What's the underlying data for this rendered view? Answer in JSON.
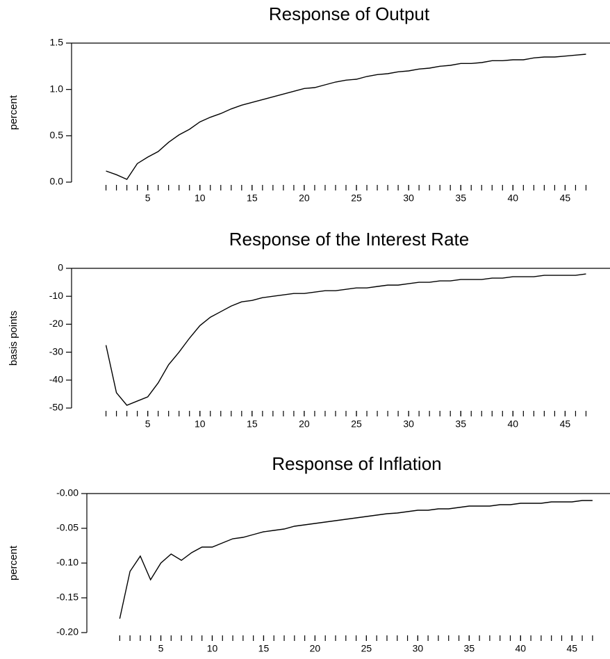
{
  "chart_data": [
    {
      "type": "line",
      "title": "Response of Output",
      "y_label": "percent",
      "x": [
        1,
        2,
        3,
        4,
        5,
        6,
        7,
        8,
        9,
        10,
        11,
        12,
        13,
        14,
        15,
        16,
        17,
        18,
        19,
        20,
        21,
        22,
        23,
        24,
        25,
        26,
        27,
        28,
        29,
        30,
        31,
        32,
        33,
        34,
        35,
        36,
        37,
        38,
        39,
        40,
        41,
        42,
        43,
        44,
        45,
        46,
        47
      ],
      "values": [
        0.12,
        0.08,
        0.03,
        0.2,
        0.27,
        0.33,
        0.43,
        0.51,
        0.57,
        0.65,
        0.7,
        0.74,
        0.79,
        0.83,
        0.86,
        0.89,
        0.92,
        0.95,
        0.98,
        1.01,
        1.02,
        1.05,
        1.08,
        1.1,
        1.11,
        1.14,
        1.16,
        1.17,
        1.19,
        1.2,
        1.22,
        1.23,
        1.25,
        1.26,
        1.28,
        1.28,
        1.29,
        1.31,
        1.31,
        1.32,
        1.32,
        1.34,
        1.35,
        1.35,
        1.36,
        1.37,
        1.38
      ],
      "color": "#000000",
      "xlim": [
        -2.3,
        49.3
      ],
      "xticks": [
        5,
        10,
        15,
        20,
        25,
        30,
        35,
        40,
        45
      ],
      "ylim": [
        0,
        1.5
      ],
      "yticks": [
        {
          "value": 0,
          "label": "0.0"
        },
        0.5,
        {
          "value": 1,
          "label": "1.0"
        },
        1.5
      ]
    },
    {
      "type": "line",
      "title": "Response of the Interest Rate",
      "y_label": "basis points",
      "x": [
        1,
        2,
        3,
        4,
        5,
        6,
        7,
        8,
        9,
        10,
        11,
        12,
        13,
        14,
        15,
        16,
        17,
        18,
        19,
        20,
        21,
        22,
        23,
        24,
        25,
        26,
        27,
        28,
        29,
        30,
        31,
        32,
        33,
        34,
        35,
        36,
        37,
        38,
        39,
        40,
        41,
        42,
        43,
        44,
        45,
        46,
        47
      ],
      "values": [
        -27.5,
        -44.5,
        -49,
        -47.5,
        -46,
        -41,
        -34.5,
        -30,
        -25,
        -20.5,
        -17.5,
        -15.5,
        -13.5,
        -12,
        -11.5,
        -10.5,
        -10,
        -9.5,
        -9,
        -9,
        -8.5,
        -8,
        -8,
        -7.5,
        -7,
        -7,
        -6.5,
        -6,
        -6,
        -5.5,
        -5,
        -5,
        -4.5,
        -4.5,
        -4,
        -4,
        -4,
        -3.5,
        -3.5,
        -3,
        -3,
        -3,
        -2.5,
        -2.5,
        -2.5,
        -2.5,
        -2
      ],
      "color": "#000000",
      "xlim": [
        -2.3,
        49.3
      ],
      "xticks": [
        5,
        10,
        15,
        20,
        25,
        30,
        35,
        40,
        45
      ],
      "ylim": [
        -50,
        0
      ],
      "yticks": [
        -50,
        -40,
        -30,
        -20,
        -10,
        0
      ]
    },
    {
      "type": "line",
      "title": "Response of Inflation",
      "y_label": "percent",
      "x": [
        1,
        2,
        3,
        4,
        5,
        6,
        7,
        8,
        9,
        10,
        11,
        12,
        13,
        14,
        15,
        16,
        17,
        18,
        19,
        20,
        21,
        22,
        23,
        24,
        25,
        26,
        27,
        28,
        29,
        30,
        31,
        32,
        33,
        34,
        35,
        36,
        37,
        38,
        39,
        40,
        41,
        42,
        43,
        44,
        45,
        46,
        47
      ],
      "values": [
        -0.18,
        -0.112,
        -0.09,
        -0.124,
        -0.1,
        -0.087,
        -0.096,
        -0.085,
        -0.077,
        -0.077,
        -0.071,
        -0.065,
        -0.063,
        -0.059,
        -0.055,
        -0.053,
        -0.051,
        -0.047,
        -0.045,
        -0.043,
        -0.041,
        -0.039,
        -0.037,
        -0.035,
        -0.033,
        -0.031,
        -0.029,
        -0.028,
        -0.026,
        -0.024,
        -0.024,
        -0.022,
        -0.022,
        -0.02,
        -0.018,
        -0.018,
        -0.018,
        -0.016,
        -0.016,
        -0.014,
        -0.014,
        -0.014,
        -0.012,
        -0.012,
        -0.012,
        -0.01,
        -0.01
      ],
      "color": "#000000",
      "xlim": [
        -2.2,
        48.7
      ],
      "xticks": [
        5,
        10,
        15,
        20,
        25,
        30,
        35,
        40,
        45
      ],
      "ylim": [
        -0.2,
        0
      ],
      "yticks": [
        {
          "value": -0.2,
          "label": "-0.20"
        },
        -0.15,
        {
          "value": -0.1,
          "label": "-0.10"
        },
        -0.05,
        {
          "value": 0,
          "label": "-0.00"
        }
      ]
    }
  ]
}
